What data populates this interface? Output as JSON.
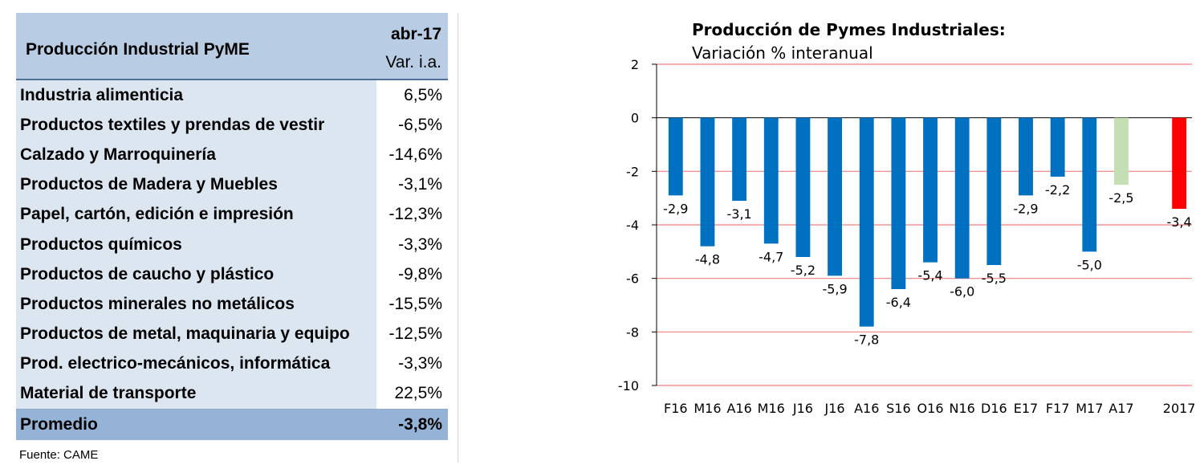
{
  "table": {
    "title": "Producción Industrial PyME",
    "period": "abr-17",
    "subheader": "Var. i.a.",
    "rows": [
      {
        "label": "Industria alimenticia",
        "value": "6,5%"
      },
      {
        "label": "Productos textiles y prendas de vestir",
        "value": "-6,5%"
      },
      {
        "label": "Calzado y Marroquinería",
        "value": "-14,6%"
      },
      {
        "label": "Productos de Madera y Muebles",
        "value": "-3,1%"
      },
      {
        "label": "Papel, cartón, edición e impresión",
        "value": "-12,3%"
      },
      {
        "label": "Productos químicos",
        "value": "-3,3%"
      },
      {
        "label": "Productos de caucho y plástico",
        "value": "-9,8%"
      },
      {
        "label": "Productos minerales no metálicos",
        "value": "-15,5%"
      },
      {
        "label": "Productos de metal, maquinaria y equipo",
        "value": "-12,5%"
      },
      {
        "label": "Prod. electrico-mecánicos, informática",
        "value": "-3,3%"
      },
      {
        "label": "Material de transporte",
        "value": "22,5%"
      }
    ],
    "average": {
      "label": "Promedio",
      "value": "-3,8%"
    },
    "source": "Fuente: CAME"
  },
  "chart_data": {
    "type": "bar",
    "title": "Producción de Pymes Industriales:",
    "subtitle": "Variación % interanual",
    "categories": [
      "F16",
      "M16",
      "A16",
      "M16",
      "J16",
      "J16",
      "A16",
      "S16",
      "O16",
      "N16",
      "D16",
      "E17",
      "F17",
      "M17",
      "A17",
      "2017"
    ],
    "values": [
      -2.9,
      -4.8,
      -3.1,
      -4.7,
      -5.2,
      -5.9,
      -7.8,
      -6.4,
      -5.4,
      -6.0,
      -5.5,
      -2.9,
      -2.2,
      -5.0,
      -2.5,
      -3.4
    ],
    "data_labels": [
      "-2,9",
      "-4,8",
      "-3,1",
      "-4,7",
      "-5,2",
      "-5,9",
      "-7,8",
      "-6,4",
      "-5,4",
      "-6,0",
      "-5,5",
      "-2,9",
      "-2,2",
      "-5,0",
      "-2,5",
      "-3,4"
    ],
    "bar_colors": [
      "#0070c0",
      "#0070c0",
      "#0070c0",
      "#0070c0",
      "#0070c0",
      "#0070c0",
      "#0070c0",
      "#0070c0",
      "#0070c0",
      "#0070c0",
      "#0070c0",
      "#0070c0",
      "#0070c0",
      "#0070c0",
      "#c4dfb3",
      "#ff0000"
    ],
    "ylim": [
      -10,
      2
    ],
    "yticks": [
      "2",
      "0",
      "-2",
      "-4",
      "-6",
      "-8",
      "-10"
    ],
    "grid": true,
    "gridline_color": "#f08080",
    "xlabel": "",
    "ylabel": ""
  }
}
